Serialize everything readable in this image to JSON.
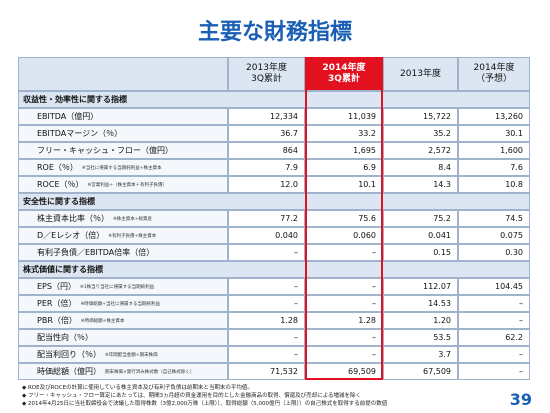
{
  "title": "主要な財務指標",
  "table": {
    "columns": [
      "2013年度\n3Q累計",
      "2014年度\n3Q累計",
      "2013年度",
      "2014年度\n（予想）"
    ],
    "sections": [
      {
        "heading": "収益性・効率性に関する指標",
        "rows": [
          {
            "label": "EBITDA（億円）",
            "values": [
              "12,334",
              "11,039",
              "15,722",
              "13,260"
            ]
          },
          {
            "label": "EBITDAマージン（％）",
            "values": [
              "36.7",
              "33.2",
              "35.2",
              "30.1"
            ]
          },
          {
            "label": "フリー・キャッシュ・フロー（億円）",
            "values": [
              "864",
              "1,695",
              "2,572",
              "1,600"
            ]
          },
          {
            "label": "ROE（％）",
            "note": "※当社に帰属する当期純利益÷株主資本",
            "values": [
              "7.9",
              "6.9",
              "8.4",
              "7.6"
            ]
          },
          {
            "label": "ROCE（％）",
            "note": "※営業利益÷（株主資本＋有利子負債）",
            "values": [
              "12.0",
              "10.1",
              "14.3",
              "10.8"
            ]
          }
        ]
      },
      {
        "heading": "安全性に関する指標",
        "rows": [
          {
            "label": "株主資本比率（％）",
            "note": "※株主資本÷総資産",
            "values": [
              "77.2",
              "75.6",
              "75.2",
              "74.5"
            ]
          },
          {
            "label": "D／Eレシオ（倍）",
            "note": "※有利子負債÷株主資本",
            "values": [
              "0.040",
              "0.060",
              "0.041",
              "0.075"
            ]
          },
          {
            "label": "有利子負債／EBITDA倍率（倍）",
            "values": [
              "–",
              "–",
              "0.15",
              "0.30"
            ]
          }
        ]
      },
      {
        "heading": "株式価値に関する指標",
        "rows": [
          {
            "label": "EPS（円）",
            "note": "※1株当り当社に帰属する当期純利益",
            "values": [
              "–",
              "–",
              "112.07",
              "104.45"
            ]
          },
          {
            "label": "PER（倍）",
            "note": "※時価総額÷当社に帰属する当期純利益",
            "values": [
              "–",
              "–",
              "14.53",
              "–"
            ]
          },
          {
            "label": "PBR（倍）",
            "note": "※時価総額÷株主資本",
            "values": [
              "1.28",
              "1.28",
              "1.20",
              "–"
            ]
          },
          {
            "label": "配当性向（％）",
            "values": [
              "–",
              "–",
              "53.5",
              "62.2"
            ]
          },
          {
            "label": "配当利回り（％）",
            "note": "※年間配当金額÷期末株価",
            "values": [
              "–",
              "–",
              "3.7",
              "–"
            ]
          },
          {
            "label": "時価総額（億円）",
            "note": "期末株価×発行済み株式数（自己株式除く）",
            "values": [
              "71,532",
              "69,509",
              "67,509",
              "–"
            ]
          }
        ]
      }
    ]
  },
  "footnotes": [
    "ROE及びROCEの計算に使用している株主資本及び有利子負債は前期末と当期末の平均値。",
    "フリー・キャッシュ・フロー算定にあたっては、期間3ヵ月超の資金運用を目的とした金融商品の取得、償還及び売却による増減を除く",
    "2014年4月25日に当社取締役会で決議した取得株数（3億2,000万株（上限））、取得総額（5,000億円（上限））の自己株式を取得する前提の数値"
  ],
  "page_number": "39"
}
